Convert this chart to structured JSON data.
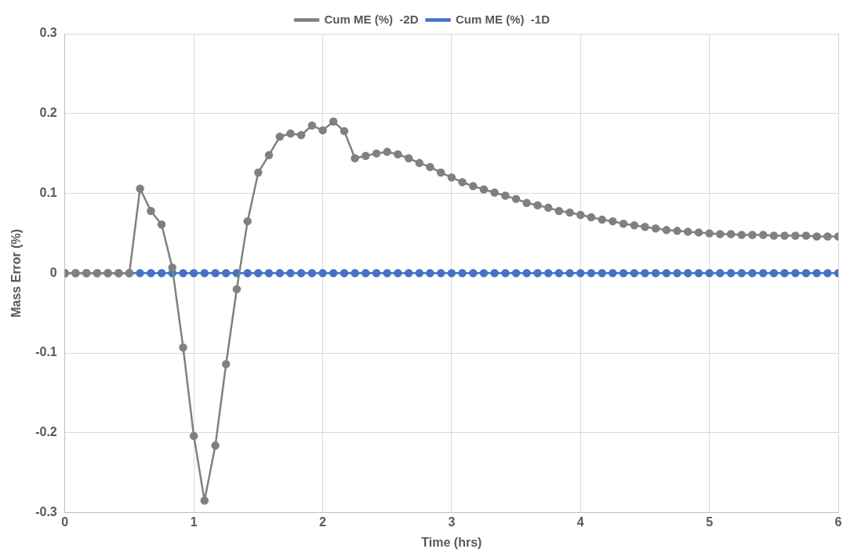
{
  "chart_data": {
    "type": "line",
    "xlabel": "Time (hrs)",
    "ylabel": "Mass Error (%)",
    "x": [
      0,
      0.083,
      0.167,
      0.25,
      0.333,
      0.417,
      0.5,
      0.583,
      0.667,
      0.75,
      0.833,
      0.917,
      1,
      1.083,
      1.167,
      1.25,
      1.333,
      1.417,
      1.5,
      1.583,
      1.667,
      1.75,
      1.833,
      1.917,
      2,
      2.083,
      2.167,
      2.25,
      2.333,
      2.417,
      2.5,
      2.583,
      2.667,
      2.75,
      2.833,
      2.917,
      3,
      3.083,
      3.167,
      3.25,
      3.333,
      3.417,
      3.5,
      3.583,
      3.667,
      3.75,
      3.833,
      3.917,
      4,
      4.083,
      4.167,
      4.25,
      4.333,
      4.417,
      4.5,
      4.583,
      4.667,
      4.75,
      4.833,
      4.917,
      5,
      5.083,
      5.167,
      5.25,
      5.333,
      5.417,
      5.5,
      5.583,
      5.667,
      5.75,
      5.833,
      5.917,
      6
    ],
    "series": [
      {
        "name": "Cum ME (%)  -2D",
        "color": "#808080",
        "values": [
          0,
          0,
          0,
          0,
          0,
          0,
          0,
          0.106,
          0.078,
          0.061,
          0.007,
          -0.093,
          -0.204,
          -0.285,
          -0.216,
          -0.114,
          -0.02,
          0.065,
          0.126,
          0.148,
          0.171,
          0.175,
          0.173,
          0.185,
          0.179,
          0.19,
          0.178,
          0.144,
          0.147,
          0.15,
          0.152,
          0.149,
          0.144,
          0.138,
          0.133,
          0.126,
          0.12,
          0.114,
          0.109,
          0.105,
          0.101,
          0.097,
          0.093,
          0.088,
          0.085,
          0.082,
          0.078,
          0.076,
          0.073,
          0.07,
          0.067,
          0.065,
          0.062,
          0.06,
          0.058,
          0.056,
          0.054,
          0.053,
          0.052,
          0.051,
          0.05,
          0.049,
          0.049,
          0.048,
          0.048,
          0.048,
          0.047,
          0.047,
          0.047,
          0.047,
          0.046,
          0.046,
          0.046
        ]
      },
      {
        "name": "Cum ME (%)  -1D",
        "color": "#4472c4",
        "values": [
          0,
          0,
          0,
          0,
          0,
          0,
          0,
          0,
          0,
          0,
          0,
          0,
          0,
          0,
          0,
          0,
          0,
          0,
          0,
          0,
          0,
          0,
          0,
          0,
          0,
          0,
          0,
          0,
          0,
          0,
          0,
          0,
          0,
          0,
          0,
          0,
          0,
          0,
          0,
          0,
          0,
          0,
          0,
          0,
          0,
          0,
          0,
          0,
          0,
          0,
          0,
          0,
          0,
          0,
          0,
          0,
          0,
          0,
          0,
          0,
          0,
          0,
          0,
          0,
          0,
          0,
          0,
          0,
          0,
          0,
          0,
          0,
          0
        ]
      }
    ],
    "xlim": [
      0,
      6
    ],
    "xticks": [
      0,
      1,
      2,
      3,
      4,
      5,
      6
    ],
    "ylim": [
      -0.3,
      0.3
    ],
    "yticks": [
      -0.3,
      -0.2,
      -0.1,
      0,
      0.1,
      0.2,
      0.3
    ],
    "grid": true,
    "legend": "top",
    "marker": "circle",
    "line_style": "solid"
  }
}
